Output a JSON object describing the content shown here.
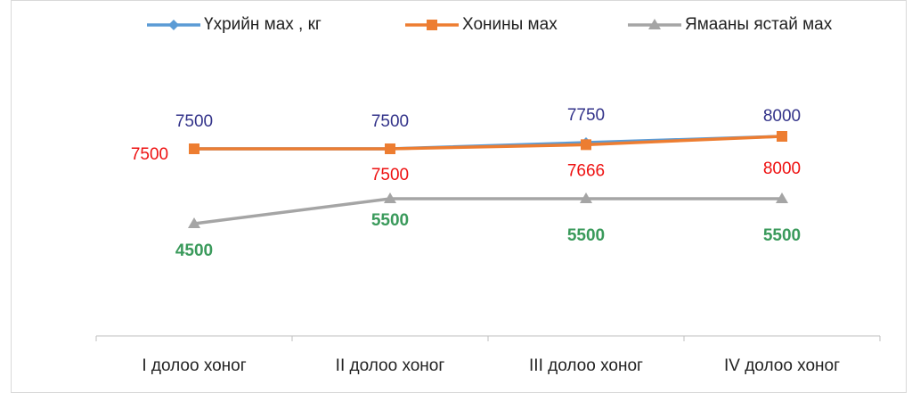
{
  "chart_data": {
    "type": "line",
    "categories": [
      "I долоо хоног",
      "II долоо хоног",
      "III долоо хоног",
      "IV долоо хоног"
    ],
    "series": [
      {
        "name": "Үхрийн мах , кг",
        "color": "#5b9bd5",
        "label_color": "#33338a",
        "marker": "diamond",
        "values": [
          7500,
          7500,
          7750,
          8000
        ]
      },
      {
        "name": "Хонины мах",
        "color": "#ed7d31",
        "label_color": "#ee1111",
        "marker": "square",
        "values": [
          7500,
          7500,
          7666,
          8000
        ]
      },
      {
        "name": "Ямааны ястай мах",
        "color": "#a5a5a5",
        "label_color": "#3a9a5b",
        "label_bold": true,
        "marker": "triangle",
        "values": [
          4500,
          5500,
          5500,
          5500
        ]
      }
    ],
    "ylim": [
      0,
      12000
    ],
    "legend": "top"
  }
}
